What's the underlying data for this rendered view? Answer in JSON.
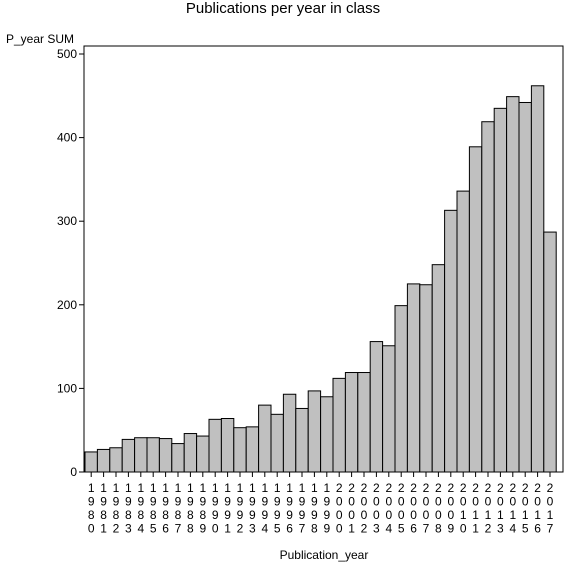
{
  "chart_data": {
    "type": "bar",
    "title": "Publications per year in class",
    "ylabel": "P_year SUM",
    "xlabel": "Publication_year",
    "ylim": [
      0,
      500
    ],
    "yticks": [
      0,
      100,
      200,
      300,
      400,
      500
    ],
    "grid": false,
    "colors": {
      "bar_fill": "#c0c0c0",
      "bar_stroke": "#000000",
      "axis": "#000000"
    },
    "categories": [
      "1980",
      "1981",
      "1982",
      "1983",
      "1984",
      "1985",
      "1986",
      "1987",
      "1988",
      "1989",
      "1990",
      "1991",
      "1992",
      "1993",
      "1994",
      "1995",
      "1996",
      "1997",
      "1998",
      "1999",
      "2000",
      "2001",
      "2002",
      "2003",
      "2004",
      "2005",
      "2006",
      "2007",
      "2008",
      "2009",
      "2010",
      "2011",
      "2012",
      "2013",
      "2014",
      "2015",
      "2016",
      "2017"
    ],
    "values": [
      24,
      27,
      29,
      39,
      41,
      41,
      40,
      34,
      46,
      43,
      63,
      64,
      53,
      54,
      80,
      69,
      93,
      76,
      97,
      90,
      112,
      119,
      119,
      156,
      151,
      199,
      225,
      224,
      248,
      313,
      336,
      389,
      419,
      435,
      449,
      442,
      462,
      287
    ]
  }
}
